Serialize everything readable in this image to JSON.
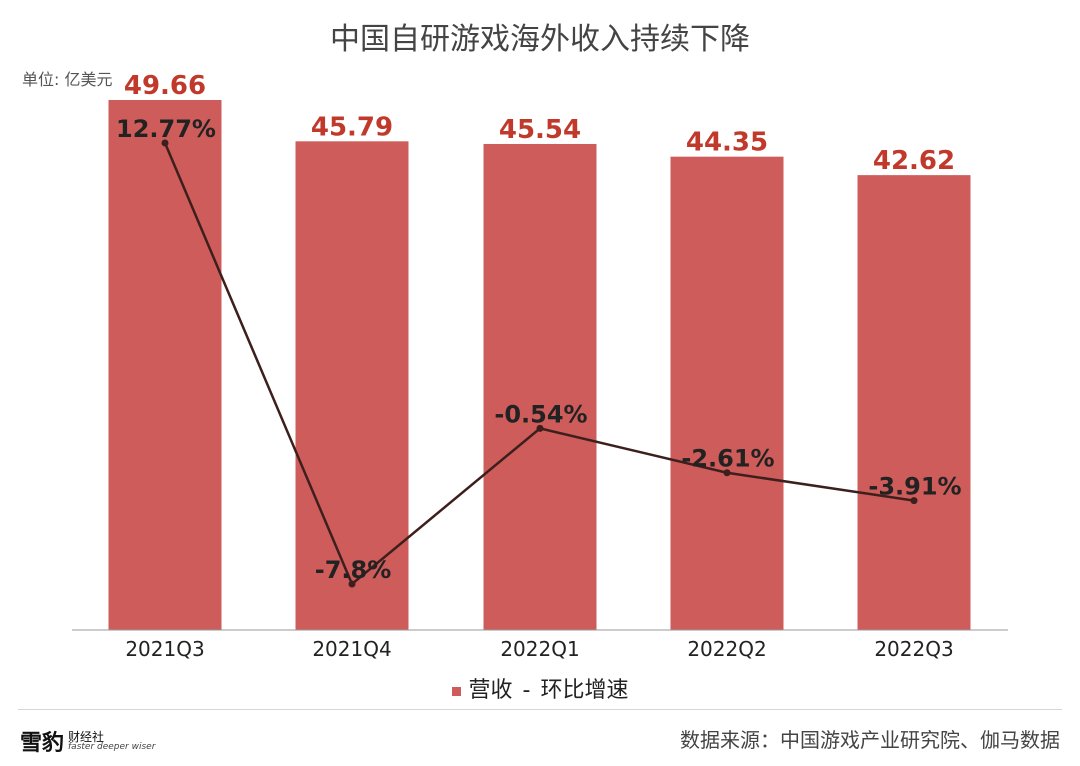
{
  "header": {
    "title": "中国自研游戏海外收入持续下降",
    "unit": "单位: 亿美元"
  },
  "legend": {
    "bar_label": "营收",
    "line_label": "环比增速"
  },
  "footer": {
    "logo_cn": "雪豹",
    "logo_sub_cn": "财经社",
    "logo_sub_en": "faster deeper wiser",
    "source": "数据来源：中国游戏产业研究院、伽马数据"
  },
  "colors": {
    "bar": "#cd5c5a",
    "bar_label": "#c0392b",
    "line": "#3d1f1d",
    "text": "#222222"
  },
  "chart_data": {
    "type": "bar",
    "categories": [
      "2021Q3",
      "2021Q4",
      "2022Q1",
      "2022Q2",
      "2022Q3"
    ],
    "series": [
      {
        "name": "营收",
        "type": "bar",
        "values": [
          49.66,
          45.79,
          45.54,
          44.35,
          42.62
        ],
        "labels": [
          "49.66",
          "45.79",
          "45.54",
          "44.35",
          "42.62"
        ]
      },
      {
        "name": "环比增速",
        "type": "line",
        "values": [
          12.77,
          -7.8,
          -0.54,
          -2.61,
          -3.91
        ],
        "labels": [
          "12.77%",
          "-7.8%",
          "-0.54%",
          "-2.61%",
          "-3.91%"
        ]
      }
    ],
    "title": "中国自研游戏海外收入持续下降",
    "ylabel": "单位: 亿美元",
    "ylim_bar": [
      0,
      50
    ],
    "ylim_line": [
      -9,
      14
    ],
    "grid": false,
    "legend": "bottom"
  }
}
